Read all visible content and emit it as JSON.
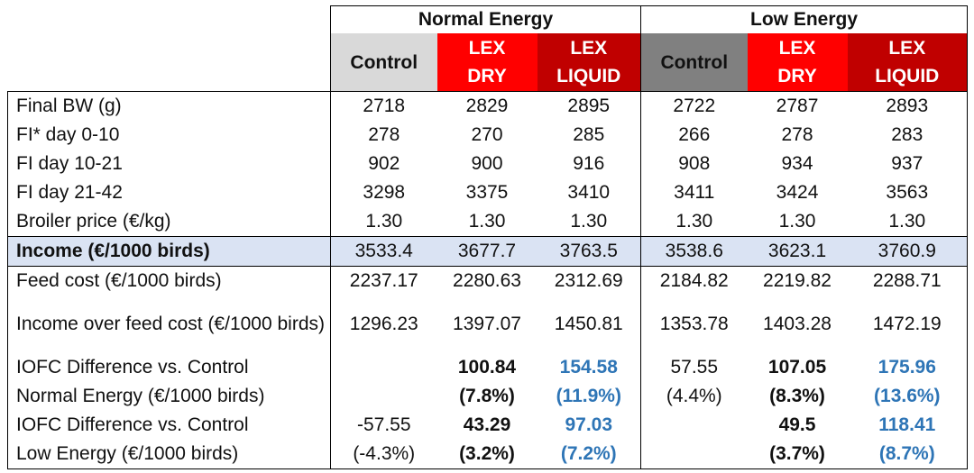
{
  "header": {
    "group_normal": "Normal Energy",
    "group_low": "Low Energy",
    "columns": [
      {
        "line1": "Control",
        "line2": ""
      },
      {
        "line1": "LEX",
        "line2": "DRY"
      },
      {
        "line1": "LEX",
        "line2": "LIQUID"
      },
      {
        "line1": "Control",
        "line2": ""
      },
      {
        "line1": "LEX",
        "line2": "DRY"
      },
      {
        "line1": "LEX",
        "line2": "LIQUID"
      }
    ]
  },
  "rows": [
    {
      "label": "Final BW (g)",
      "values": [
        "2718",
        "2829",
        "2895",
        "2722",
        "2787",
        "2893"
      ]
    },
    {
      "label": "FI* day 0-10",
      "values": [
        "278",
        "270",
        "285",
        "266",
        "278",
        "283"
      ]
    },
    {
      "label": "FI day 10-21",
      "values": [
        "902",
        "900",
        "916",
        "908",
        "934",
        "937"
      ]
    },
    {
      "label": "FI day 21-42",
      "values": [
        "3298",
        "3375",
        "3410",
        "3411",
        "3424",
        "3563"
      ]
    },
    {
      "label": "Broiler price (€/kg)",
      "values": [
        "1.30",
        "1.30",
        "1.30",
        "1.30",
        "1.30",
        "1.30"
      ]
    },
    {
      "label": "Income (€/1000 birds)",
      "values": [
        "3533.4",
        "3677.7",
        "3763.5",
        "3538.6",
        "3623.1",
        "3760.9"
      ]
    },
    {
      "label": "Feed cost (€/1000 birds)",
      "values": [
        "2237.17",
        "2280.63",
        "2312.69",
        "2184.82",
        "2219.82",
        "2288.71"
      ]
    },
    {
      "label": "Income over feed cost (€/1000 birds)",
      "values": [
        "1296.23",
        "1397.07",
        "1450.81",
        "1353.78",
        "1403.28",
        "1472.19"
      ]
    },
    {
      "label": "IOFC Difference vs. Control",
      "values": [
        "",
        "100.84",
        "154.58",
        "57.55",
        "107.05",
        "175.96"
      ]
    },
    {
      "label": "Normal Energy (€/1000 birds)",
      "values": [
        "",
        "(7.8%)",
        "(11.9%)",
        "(4.4%)",
        "(8.3%)",
        "(13.6%)"
      ]
    },
    {
      "label": "IOFC Difference vs. Control",
      "values": [
        "-57.55",
        "43.29",
        "97.03",
        "",
        "49.5",
        "118.41"
      ]
    },
    {
      "label": "Low Energy (€/1000 birds)",
      "values": [
        "(-4.3%)",
        "(3.2%)",
        "(7.2%)",
        "",
        "(3.7%)",
        "(8.7%)"
      ]
    }
  ],
  "colors": {
    "control_normal": "#d9d9d9",
    "control_low": "#808080",
    "lex_dry": "#ff0000",
    "lex_liquid": "#c00000",
    "income_row": "#dae3f3",
    "highlight_blue": "#2e75b6"
  }
}
